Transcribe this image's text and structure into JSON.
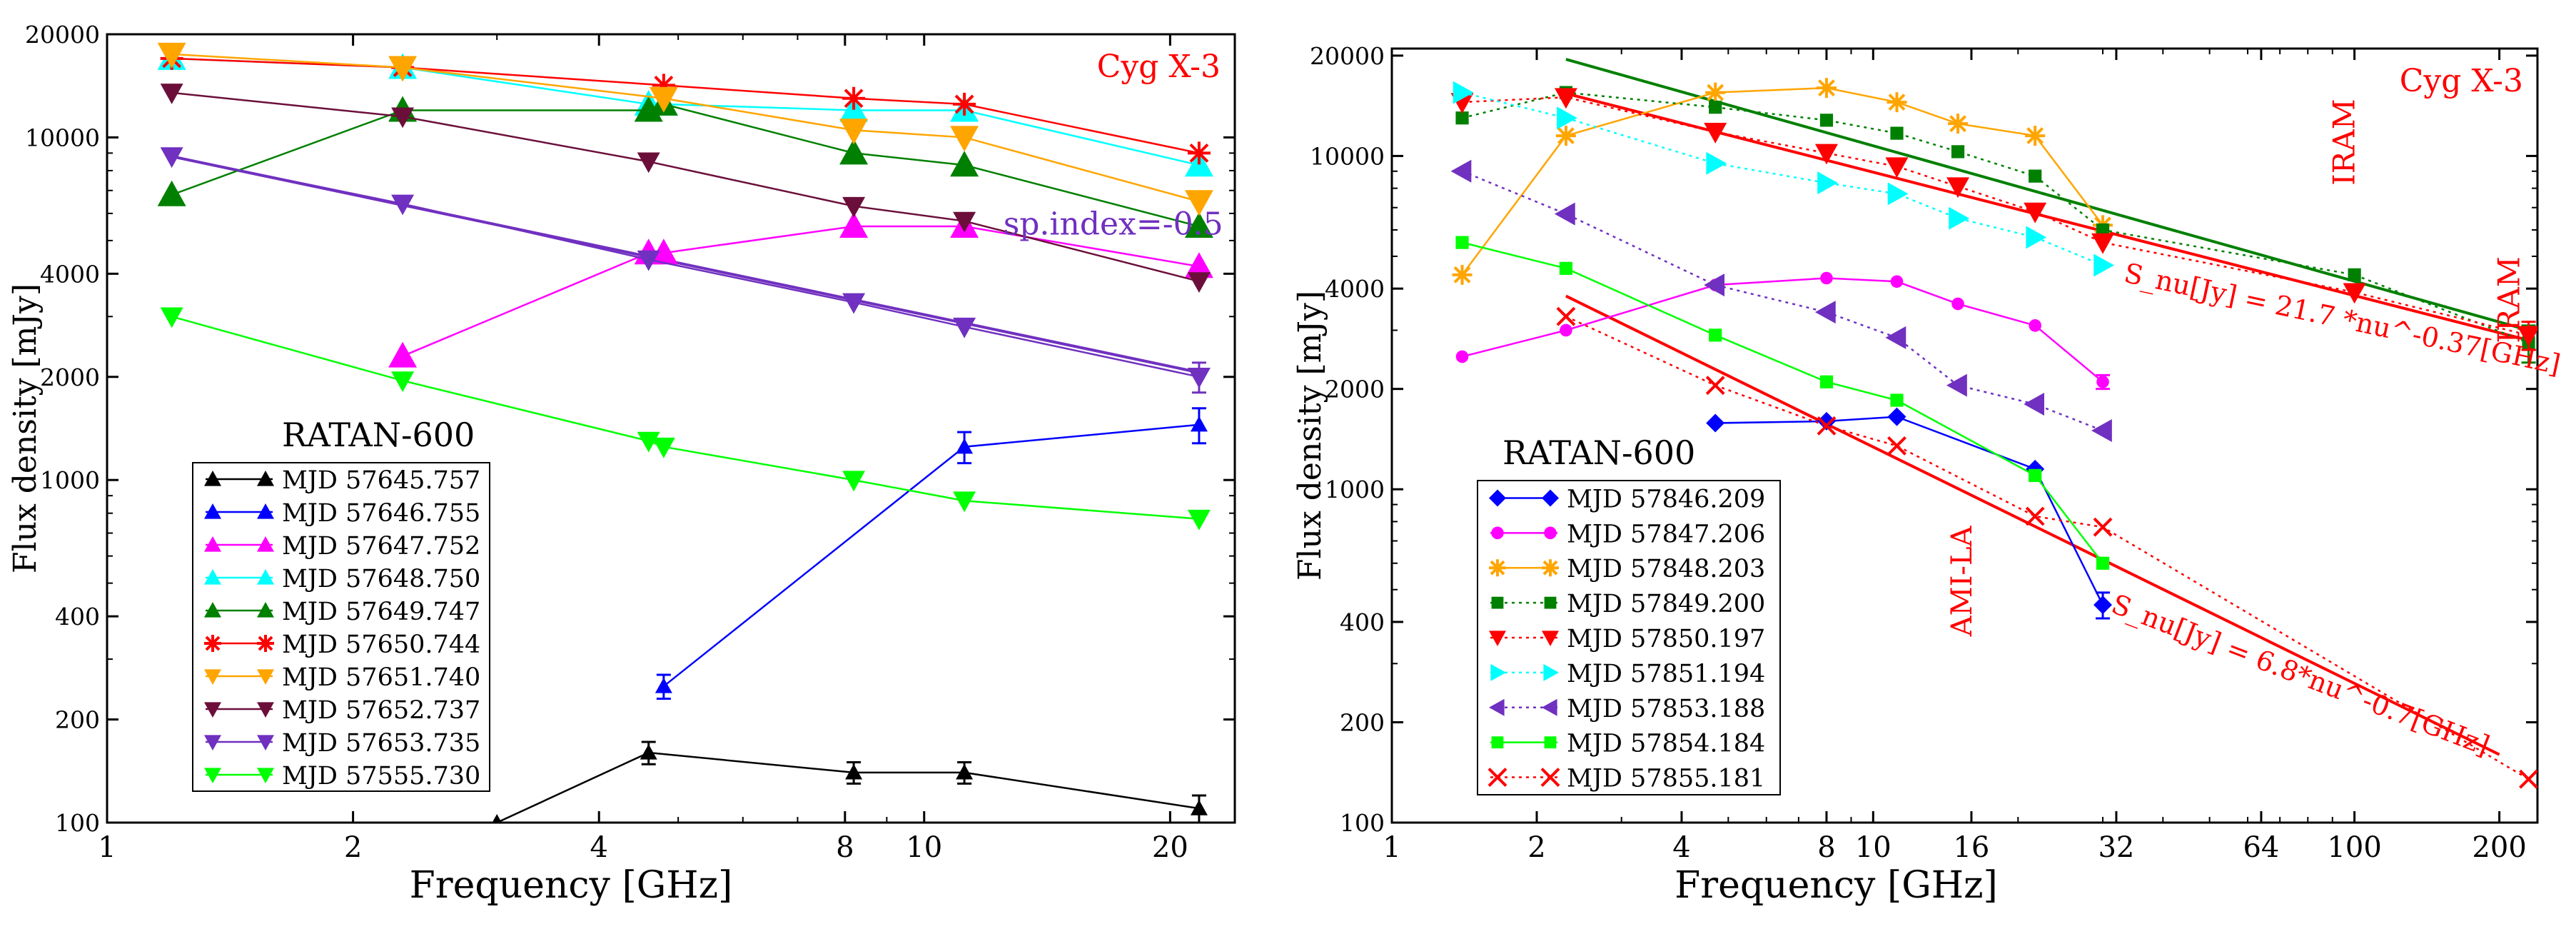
{
  "chart_data": [
    {
      "type": "line",
      "xscale": "log",
      "yscale": "log",
      "xlim": [
        1,
        24
      ],
      "ylim": [
        100,
        20000
      ],
      "xticks": [
        1,
        2,
        4,
        8,
        10,
        20
      ],
      "xtick_labels": [
        "1",
        "2",
        "4",
        "8",
        "10",
        "20"
      ],
      "yticks": [
        100,
        200,
        400,
        1000,
        2000,
        4000,
        10000,
        20000
      ],
      "ytick_labels": [
        "100",
        "200",
        "400",
        "1000",
        "2000",
        "4000",
        "10000",
        "20000"
      ],
      "xlabel": "Frequency [GHz]",
      "ylabel": "Flux density [mJy]",
      "title": "Cyg X-3",
      "title_color": "#ff0000",
      "legend_title": "RATAN-600",
      "legend_position": "bottom-left",
      "annotations": [
        {
          "text": "sp.index=-0.5",
          "x": 12.5,
          "y": 5200,
          "color": "#7030c0",
          "rotate": 0,
          "size": 44
        }
      ],
      "series": [
        {
          "name": "MJD 57645.757",
          "color": "#000000",
          "marker": "triangle-up",
          "markersize": 12,
          "dashed": false,
          "x": [
            3.0,
            4.6,
            8.2,
            11.2,
            21.7
          ],
          "y": [
            100,
            160,
            140,
            140,
            110
          ],
          "err": [
            0,
            12,
            10,
            10,
            10
          ]
        },
        {
          "name": "MJD 57646.755",
          "color": "#0000ff",
          "marker": "triangle-up",
          "markersize": 12,
          "dashed": false,
          "x": [
            4.8,
            11.2,
            21.7
          ],
          "y": [
            250,
            1250,
            1450
          ],
          "err": [
            20,
            130,
            170
          ]
        },
        {
          "name": "MJD 57647.752",
          "color": "#ff00ff",
          "marker": "triangle-up",
          "markersize": 20,
          "dashed": false,
          "x": [
            2.3,
            4.6,
            4.8,
            8.2,
            11.2,
            21.7
          ],
          "y": [
            2300,
            4600,
            4600,
            5500,
            5500,
            4200
          ],
          "err": [
            0,
            0,
            0,
            0,
            0,
            0
          ]
        },
        {
          "name": "MJD 57648.750",
          "color": "#00ffff",
          "marker": "triangle-up",
          "markersize": 20,
          "dashed": false,
          "x": [
            1.2,
            2.3,
            4.6,
            4.8,
            8.2,
            11.2,
            21.7
          ],
          "y": [
            17000,
            16000,
            12500,
            12500,
            12000,
            12000,
            8300
          ],
          "err": [
            0,
            0,
            0,
            0,
            0,
            0,
            0
          ]
        },
        {
          "name": "MJD 57649.747",
          "color": "#008000",
          "marker": "triangle-up",
          "markersize": 20,
          "dashed": false,
          "x": [
            1.2,
            2.3,
            4.6,
            4.8,
            8.2,
            11.2,
            21.7
          ],
          "y": [
            6800,
            12000,
            12000,
            12500,
            9000,
            8300,
            5500
          ],
          "err": [
            0,
            0,
            0,
            0,
            0,
            0,
            0
          ]
        },
        {
          "name": "MJD 57650.744",
          "color": "#ff0000",
          "marker": "asterisk",
          "markersize": 16,
          "dashed": false,
          "x": [
            1.2,
            2.3,
            4.8,
            8.2,
            11.2,
            21.7
          ],
          "y": [
            17000,
            16000,
            14200,
            13000,
            12500,
            9000
          ],
          "err": [
            0,
            0,
            0,
            0,
            0,
            0
          ]
        },
        {
          "name": "MJD 57651.740",
          "color": "#ffa500",
          "marker": "triangle-down",
          "markersize": 20,
          "dashed": false,
          "x": [
            1.2,
            2.3,
            4.8,
            8.2,
            11.2,
            21.7
          ],
          "y": [
            17500,
            16000,
            13000,
            10500,
            10000,
            6500
          ],
          "err": [
            0,
            0,
            0,
            0,
            0,
            0
          ]
        },
        {
          "name": "MJD 57652.737",
          "color": "#6b0f3a",
          "marker": "triangle-down",
          "markersize": 16,
          "dashed": false,
          "x": [
            1.2,
            2.3,
            4.6,
            8.2,
            11.2,
            21.7
          ],
          "y": [
            13500,
            11500,
            8500,
            6300,
            5700,
            3800
          ],
          "err": [
            0,
            0,
            0,
            0,
            0,
            0
          ]
        },
        {
          "name": "MJD 57653.735",
          "color": "#7030c0",
          "marker": "triangle-down",
          "markersize": 16,
          "dashed": false,
          "x": [
            1.2,
            2.3,
            4.6,
            8.2,
            11.2,
            21.7
          ],
          "y": [
            8800,
            6400,
            4400,
            3300,
            2800,
            2000
          ],
          "err": [
            0,
            0,
            0,
            0,
            0,
            200
          ]
        },
        {
          "name": "MJD 57555.730",
          "color": "#00ff00",
          "marker": "triangle-down",
          "markersize": 16,
          "dashed": false,
          "x": [
            1.2,
            2.3,
            4.6,
            4.8,
            8.2,
            11.2,
            21.7
          ],
          "y": [
            3000,
            1950,
            1300,
            1250,
            1000,
            870,
            770
          ],
          "err": [
            0,
            0,
            0,
            0,
            0,
            0,
            0
          ]
        }
      ],
      "lines": [
        {
          "color": "#7030c0",
          "x": [
            1.2,
            21.7
          ],
          "y": [
            8800,
            2060
          ],
          "dashed": false
        }
      ]
    },
    {
      "type": "line",
      "xscale": "log",
      "yscale": "log",
      "xlim": [
        1,
        240
      ],
      "ylim": [
        100,
        21000
      ],
      "xticks": [
        1,
        2,
        4,
        8,
        10,
        16,
        32,
        64,
        100,
        200
      ],
      "xtick_labels": [
        "1",
        "2",
        "4",
        "8",
        "10",
        "16",
        "32",
        "64",
        "100",
        "200"
      ],
      "yticks": [
        100,
        200,
        400,
        1000,
        2000,
        4000,
        10000,
        20000
      ],
      "ytick_labels": [
        "100",
        "200",
        "400",
        "1000",
        "2000",
        "4000",
        "10000",
        "20000"
      ],
      "xlabel": "Frequency  [GHz]",
      "ylabel": "Flux  density [mJy]",
      "title": "Cyg X-3",
      "title_color": "#ff0000",
      "legend_title": "RATAN-600",
      "legend_position": "bottom-left",
      "annotations": [
        {
          "text": "IRAM",
          "x": 100,
          "y": 11000,
          "color": "#ff0000",
          "rotate": -90,
          "size": 42
        },
        {
          "text": "IRAM",
          "x": 220,
          "y": 3700,
          "color": "#ff0000",
          "rotate": -90,
          "size": 42
        },
        {
          "text": "AMI-LA",
          "x": 16,
          "y": 530,
          "color": "#ff0000",
          "rotate": -90,
          "size": 40
        },
        {
          "text": "S_nu[Jy]  = 21.7 *nu^-0.37[GHz]",
          "x": 33,
          "y": 4200,
          "color": "#ff0000",
          "rotate": 12,
          "size": 38
        },
        {
          "text": "S_nu[Jy]  = 6.8*nu^-0.7[GHz]",
          "x": 31,
          "y": 430,
          "color": "#ff0000",
          "rotate": 21,
          "size": 38
        }
      ],
      "series": [
        {
          "name": "MJD 57846.209",
          "color": "#0000ff",
          "marker": "diamond",
          "markersize": 13,
          "dashed": false,
          "x": [
            4.7,
            8.0,
            11.2,
            21.7,
            30
          ],
          "y": [
            1580,
            1600,
            1650,
            1150,
            450
          ],
          "err": [
            0,
            0,
            0,
            0,
            40
          ]
        },
        {
          "name": "MJD 57847.206",
          "color": "#ff00ff",
          "marker": "circle",
          "markersize": 11,
          "dashed": false,
          "x": [
            1.4,
            2.3,
            4.7,
            8.0,
            11.2,
            15,
            21.7,
            30
          ],
          "y": [
            2500,
            3000,
            4100,
            4300,
            4200,
            3600,
            3100,
            2100
          ],
          "err": [
            0,
            0,
            0,
            0,
            0,
            0,
            0,
            100
          ]
        },
        {
          "name": "MJD 57848.203",
          "color": "#ffa500",
          "marker": "asterisk",
          "markersize": 14,
          "dashed": false,
          "x": [
            1.4,
            2.3,
            4.7,
            8.0,
            11.2,
            15,
            21.7,
            30
          ],
          "y": [
            4400,
            11500,
            15500,
            16000,
            14500,
            12500,
            11500,
            6200
          ],
          "err": [
            0,
            0,
            0,
            0,
            0,
            0,
            0,
            0
          ]
        },
        {
          "name": "MJD 57849.200",
          "color": "#008000",
          "marker": "square",
          "markersize": 13,
          "dashed": true,
          "x": [
            1.4,
            2.3,
            4.7,
            8.0,
            11.2,
            15,
            21.7,
            30,
            100,
            230
          ],
          "y": [
            13000,
            15500,
            14000,
            12800,
            11700,
            10300,
            8700,
            6000,
            4400,
            2750
          ],
          "err": [
            0,
            0,
            0,
            0,
            0,
            0,
            0,
            0,
            0,
            350
          ]
        },
        {
          "name": "MJD 57850.197",
          "color": "#ff0000",
          "marker": "triangle-down",
          "markersize": 16,
          "dashed": true,
          "x": [
            1.4,
            2.3,
            4.7,
            8.0,
            11.2,
            15,
            21.7,
            30,
            100,
            230
          ],
          "y": [
            14500,
            15000,
            11800,
            10200,
            9300,
            8100,
            6800,
            5500,
            3900,
            2900
          ],
          "err": [
            0,
            0,
            0,
            0,
            0,
            0,
            0,
            0,
            0,
            280
          ]
        },
        {
          "name": "MJD 57851.194",
          "color": "#00ffff",
          "marker": "triangle-right",
          "markersize": 16,
          "dashed": true,
          "x": [
            1.4,
            2.3,
            4.7,
            8.0,
            11.2,
            15,
            21.7,
            30
          ],
          "y": [
            15500,
            13000,
            9500,
            8300,
            7700,
            6500,
            5700,
            4700
          ],
          "err": [
            0,
            0,
            0,
            0,
            0,
            0,
            0,
            0
          ]
        },
        {
          "name": "MJD 57853.188",
          "color": "#7030c0",
          "marker": "triangle-left",
          "markersize": 16,
          "dashed": true,
          "x": [
            1.4,
            2.3,
            4.7,
            8.0,
            11.2,
            15,
            21.7,
            30
          ],
          "y": [
            9000,
            6700,
            4100,
            3400,
            2850,
            2050,
            1800,
            1500
          ],
          "err": [
            0,
            0,
            0,
            0,
            0,
            0,
            0,
            0
          ]
        },
        {
          "name": "MJD 57854.184",
          "color": "#00ff00",
          "marker": "square",
          "markersize": 13,
          "dashed": false,
          "x": [
            1.4,
            2.3,
            4.7,
            8.0,
            11.2,
            21.7,
            30
          ],
          "y": [
            5500,
            4600,
            2900,
            2100,
            1850,
            1100,
            600
          ],
          "err": [
            0,
            0,
            0,
            0,
            0,
            0,
            0
          ]
        },
        {
          "name": "MJD 57855.181",
          "color": "#ff0000",
          "marker": "x",
          "markersize": 12,
          "dashed": true,
          "x": [
            2.3,
            4.7,
            8.0,
            11.2,
            21.7,
            30,
            230
          ],
          "y": [
            3300,
            2050,
            1550,
            1350,
            830,
            770,
            135
          ],
          "err": [
            0,
            0,
            0,
            0,
            0,
            0,
            0
          ]
        }
      ],
      "lines": [
        {
          "color": "#008000",
          "x": [
            2.3,
            230
          ],
          "y": [
            19500,
            3000
          ],
          "dashed": false
        },
        {
          "color": "#ff0000",
          "x": [
            2.3,
            230
          ],
          "y": [
            15400,
            2800
          ],
          "dashed": false
        },
        {
          "color": "#ff0000",
          "x": [
            2.3,
            200
          ],
          "y": [
            3800,
            160
          ],
          "dashed": false
        }
      ]
    }
  ]
}
